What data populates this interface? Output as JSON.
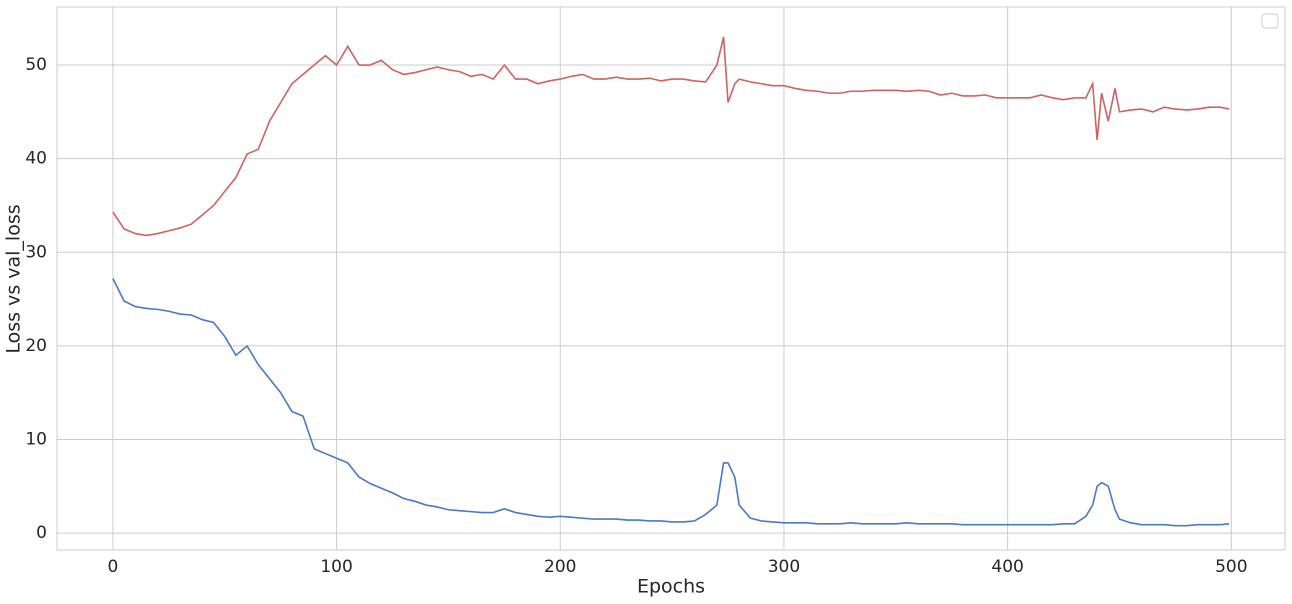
{
  "chart_data": {
    "type": "line",
    "xlabel": "Epochs",
    "ylabel": "Loss vs val_loss",
    "x": [
      0,
      5,
      10,
      15,
      20,
      25,
      30,
      35,
      40,
      45,
      50,
      55,
      60,
      65,
      70,
      75,
      80,
      85,
      90,
      95,
      100,
      105,
      110,
      115,
      120,
      125,
      130,
      135,
      140,
      145,
      150,
      155,
      160,
      165,
      170,
      175,
      180,
      185,
      190,
      195,
      200,
      205,
      210,
      215,
      220,
      225,
      230,
      235,
      240,
      245,
      250,
      255,
      260,
      265,
      270,
      273,
      275,
      278,
      280,
      285,
      290,
      295,
      300,
      305,
      310,
      315,
      320,
      325,
      330,
      335,
      340,
      345,
      350,
      355,
      360,
      365,
      370,
      375,
      380,
      385,
      390,
      395,
      400,
      405,
      410,
      415,
      420,
      425,
      430,
      435,
      438,
      440,
      442,
      445,
      448,
      450,
      455,
      460,
      465,
      470,
      475,
      480,
      485,
      490,
      495,
      499
    ],
    "series": [
      {
        "color": "#4878d0",
        "values": [
          27.2,
          24.8,
          24.2,
          24,
          23.9,
          23.7,
          23.4,
          23.3,
          22.8,
          22.5,
          21,
          19,
          20,
          18,
          16.5,
          15,
          13,
          12.5,
          9,
          8.5,
          8,
          7.5,
          6,
          5.3,
          4.8,
          4.3,
          3.7,
          3.4,
          3,
          2.8,
          2.5,
          2.4,
          2.3,
          2.2,
          2.2,
          2.6,
          2.2,
          2,
          1.8,
          1.7,
          1.8,
          1.7,
          1.6,
          1.5,
          1.5,
          1.5,
          1.4,
          1.4,
          1.3,
          1.3,
          1.2,
          1.2,
          1.3,
          2,
          3,
          7.5,
          7.5,
          6,
          3,
          1.6,
          1.3,
          1.2,
          1.1,
          1.1,
          1.1,
          1.0,
          1.0,
          1.0,
          1.1,
          1.0,
          1.0,
          1.0,
          1.0,
          1.1,
          1.0,
          1.0,
          1.0,
          1.0,
          0.9,
          0.9,
          0.9,
          0.9,
          0.9,
          0.9,
          0.9,
          0.9,
          0.9,
          1.0,
          1.0,
          1.8,
          3,
          5,
          5.4,
          5,
          2.5,
          1.5,
          1.1,
          0.9,
          0.9,
          0.9,
          0.8,
          0.8,
          0.9,
          0.9,
          0.9,
          1.0
        ]
      },
      {
        "color": "#d65f5f",
        "values": [
          34.3,
          32.5,
          32,
          31.8,
          32,
          32.3,
          32.6,
          33,
          34,
          35,
          36.5,
          38,
          40.5,
          41,
          44,
          46,
          48,
          49,
          50,
          51,
          50,
          52,
          50,
          50,
          50.5,
          49.5,
          49,
          49.2,
          49.5,
          49.8,
          49.5,
          49.3,
          48.8,
          49,
          48.5,
          50,
          48.5,
          48.5,
          48,
          48.3,
          48.5,
          48.8,
          49,
          48.5,
          48.5,
          48.7,
          48.5,
          48.5,
          48.6,
          48.3,
          48.5,
          48.5,
          48.3,
          48.2,
          50,
          53,
          46,
          48,
          48.5,
          48.2,
          48,
          47.8,
          47.8,
          47.5,
          47.3,
          47.2,
          47,
          47,
          47.2,
          47.2,
          47.3,
          47.3,
          47.3,
          47.2,
          47.3,
          47.2,
          46.8,
          47,
          46.7,
          46.7,
          46.8,
          46.5,
          46.5,
          46.5,
          46.5,
          46.8,
          46.5,
          46.3,
          46.5,
          46.5,
          48,
          42,
          47,
          44,
          47.5,
          45,
          45.2,
          45.3,
          45,
          45.5,
          45.3,
          45.2,
          45.3,
          45.5,
          45.5,
          45.3
        ]
      }
    ],
    "xlim": [
      -25,
      524
    ],
    "ylim": [
      -1.8,
      56.2
    ],
    "xticks": [
      0,
      100,
      200,
      300,
      400,
      500
    ],
    "yticks": [
      0,
      10,
      20,
      30,
      40,
      50
    ],
    "grid": true
  }
}
